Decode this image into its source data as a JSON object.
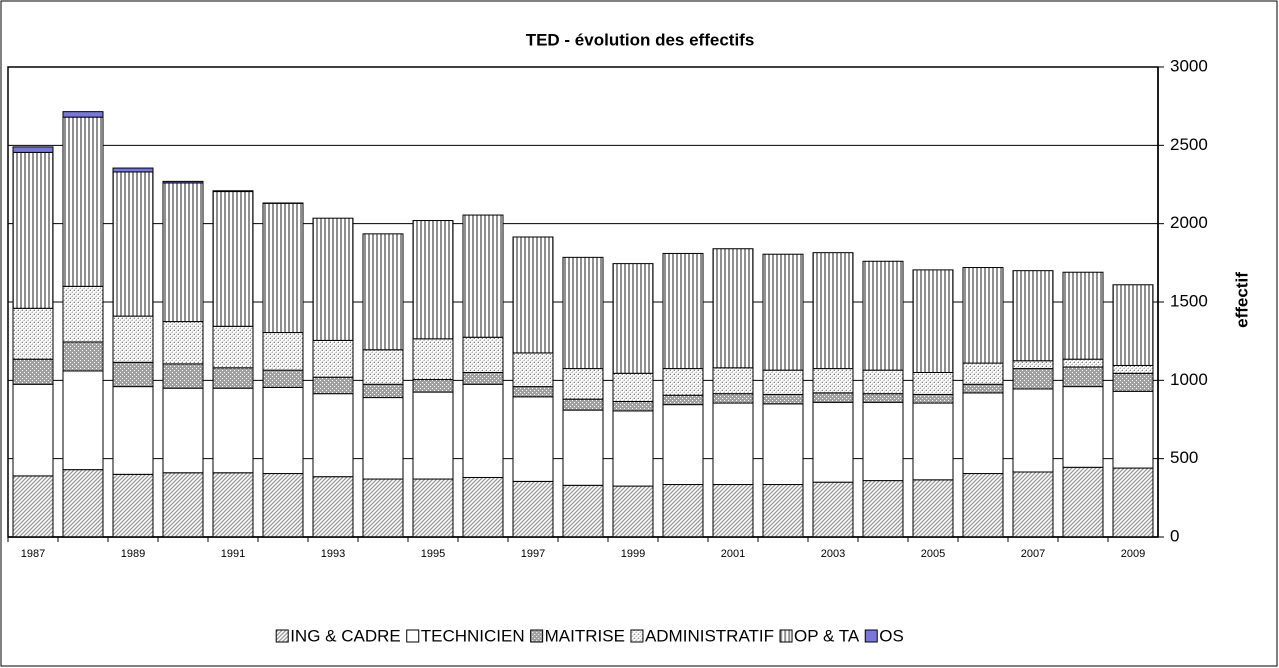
{
  "chart_data": {
    "type": "stacked-bar",
    "title": "TED - évolution des effectifs",
    "y_axis_label": "effectif",
    "categories": [
      "1987",
      null,
      "1989",
      null,
      "1991",
      null,
      "1993",
      null,
      "1995",
      null,
      "1997",
      null,
      "1999",
      null,
      "2001",
      null,
      "2003",
      null,
      "2005",
      null,
      "2007",
      null,
      "2009"
    ],
    "ylim": [
      0,
      3000
    ],
    "yticks": [
      0,
      500,
      1000,
      1500,
      2000,
      2500,
      3000
    ],
    "grid": true,
    "y_axis_side": "right",
    "legend": "bottom",
    "series": [
      {
        "name": "ING & CADRE",
        "color": "#999999",
        "pattern": "diagonal",
        "values": [
          390,
          430,
          400,
          410,
          410,
          405,
          385,
          370,
          370,
          380,
          355,
          330,
          325,
          335,
          335,
          335,
          350,
          360,
          365,
          405,
          415,
          445,
          440
        ]
      },
      {
        "name": "TECHNICIEN",
        "color": "#ffffff",
        "pattern": "solid",
        "values": [
          585,
          630,
          560,
          540,
          540,
          550,
          530,
          520,
          555,
          595,
          540,
          480,
          480,
          510,
          520,
          515,
          510,
          500,
          490,
          515,
          530,
          515,
          490
        ]
      },
      {
        "name": "MAITRISE",
        "color": "#a0a0a0",
        "pattern": "fine",
        "values": [
          160,
          185,
          155,
          155,
          130,
          110,
          105,
          85,
          80,
          75,
          65,
          70,
          60,
          60,
          60,
          60,
          60,
          55,
          55,
          55,
          130,
          125,
          115
        ]
      },
      {
        "name": "ADMINISTRATIF",
        "color": "#b8b8b8",
        "pattern": "dots",
        "values": [
          325,
          355,
          295,
          270,
          265,
          240,
          235,
          220,
          260,
          225,
          215,
          195,
          180,
          170,
          165,
          155,
          155,
          150,
          140,
          135,
          50,
          50,
          50
        ]
      },
      {
        "name": "OP & TA",
        "color": "#909090",
        "pattern": "vertical",
        "values": [
          995,
          1080,
          920,
          885,
          860,
          825,
          780,
          740,
          755,
          780,
          740,
          710,
          700,
          735,
          760,
          740,
          740,
          695,
          655,
          610,
          575,
          555,
          515
        ]
      },
      {
        "name": "OS",
        "color": "#7777dd",
        "pattern": "solid",
        "values": [
          35,
          35,
          25,
          10,
          5,
          2,
          0,
          0,
          0,
          0,
          0,
          0,
          0,
          0,
          0,
          0,
          0,
          0,
          0,
          0,
          0,
          0,
          0
        ]
      }
    ]
  }
}
